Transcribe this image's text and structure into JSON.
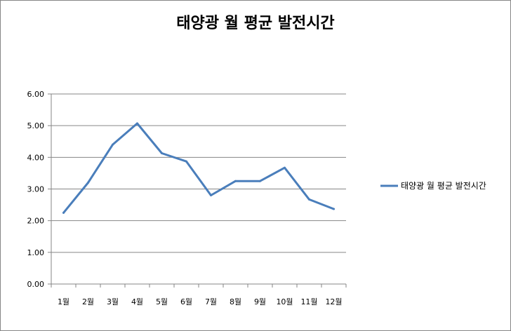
{
  "chart_data": {
    "type": "line",
    "title": "태양광 월 평균 발전시간",
    "xlabel": "",
    "ylabel": "",
    "categories": [
      "1월",
      "2월",
      "3월",
      "4월",
      "5월",
      "6월",
      "7월",
      "8월",
      "9월",
      "10월",
      "11월",
      "12월"
    ],
    "series": [
      {
        "name": "태양광 월 평균 발전시간",
        "color": "#4a7ebb",
        "values": [
          2.25,
          3.2,
          4.4,
          5.07,
          4.13,
          3.87,
          2.8,
          3.25,
          3.25,
          3.67,
          2.67,
          2.37
        ]
      }
    ],
    "ylim": [
      0,
      6
    ],
    "yticks": [
      "0.00",
      "1.00",
      "2.00",
      "3.00",
      "4.00",
      "5.00",
      "6.00"
    ],
    "grid": true,
    "legend_position": "right"
  }
}
